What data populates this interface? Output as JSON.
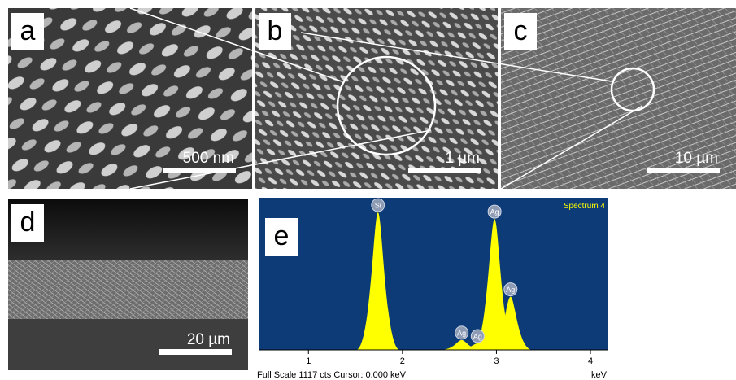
{
  "panels": [
    {
      "label": "a",
      "scale_bar": "500 nm"
    },
    {
      "label": "b",
      "scale_bar": "1 µm"
    },
    {
      "label": "c",
      "scale_bar": "10 µm"
    },
    {
      "label": "d",
      "scale_bar": "20 µm"
    }
  ],
  "spectrum": {
    "type": "spectrum",
    "label": "e",
    "title": "Spectrum 4",
    "xlim": [
      0.47,
      4.19
    ],
    "xticks": [
      1,
      2,
      3,
      4
    ],
    "x_unit": "keV",
    "ylim": [
      0,
      1117
    ],
    "status": "Full Scale 1117 cts  Cursor: 0.000 keV",
    "fill": "#ffff00",
    "background": "#0d3b78",
    "peaks": [
      {
        "label": "Si",
        "energy": 1.74,
        "counts": 1031
      },
      {
        "label": "Ag",
        "energy": 2.98,
        "counts": 982
      },
      {
        "label": "Ag",
        "energy": 3.15,
        "counts": 399
      },
      {
        "label": "Ag",
        "energy": 2.63,
        "counts": 74
      },
      {
        "label": "Ag",
        "energy": 2.8,
        "counts": 49
      }
    ]
  }
}
